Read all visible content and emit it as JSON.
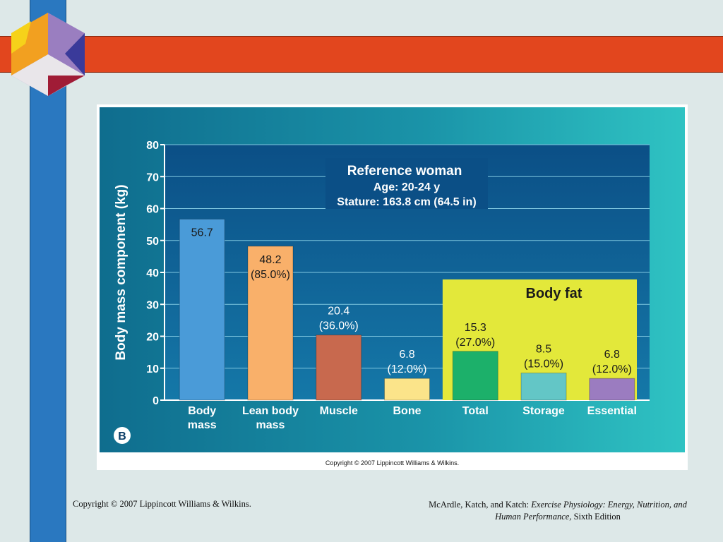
{
  "slide": {
    "inner_credit": "Copyright © 2007 Lippincott Williams & Wilkins.",
    "footer_left": "Copyright © 2007 Lippincott Williams & Wilkins.",
    "footer_right_authors": "McArdle, Katch, and Katch: ",
    "footer_right_title": "Exercise Physiology: Energy, Nutrition, and Human Performance,",
    "footer_right_edition": " Sixth Edition",
    "colors": {
      "vertical_bar": "#2a78c0",
      "horizontal_bar": "#e2461e",
      "background": "#dde8e8"
    }
  },
  "chart_data": {
    "type": "bar",
    "panel_letter": "B",
    "title": "Reference woman",
    "subtitle_lines": [
      "Age: 20-24 y",
      "Stature: 163.8 cm (64.5 in)"
    ],
    "ylabel": "Body mass component (kg)",
    "xlabel": "",
    "ylim": [
      0,
      80
    ],
    "yticks": [
      0,
      10,
      20,
      30,
      40,
      50,
      60,
      70,
      80
    ],
    "grid": true,
    "group_label": "Body fat",
    "bars": [
      {
        "category": [
          "Body",
          "mass"
        ],
        "value": 56.7,
        "labels": [
          "56.7"
        ],
        "color": "#4a9bd8",
        "in_group": false
      },
      {
        "category": [
          "Lean body",
          "mass"
        ],
        "value": 48.2,
        "labels": [
          "48.2",
          "(85.0%)"
        ],
        "color": "#f9b06a",
        "in_group": false
      },
      {
        "category": [
          "Muscle"
        ],
        "value": 20.4,
        "labels": [
          "20.4",
          "(36.0%)"
        ],
        "color": "#c8694e",
        "in_group": false
      },
      {
        "category": [
          "Bone"
        ],
        "value": 6.8,
        "labels": [
          "6.8",
          "(12.0%)"
        ],
        "color": "#fbe48a",
        "in_group": false
      },
      {
        "category": [
          "Total"
        ],
        "value": 15.3,
        "labels": [
          "15.3",
          "(27.0%)"
        ],
        "color": "#1cb06a",
        "in_group": true
      },
      {
        "category": [
          "Storage"
        ],
        "value": 8.5,
        "labels": [
          "8.5",
          "(15.0%)"
        ],
        "color": "#63c6c6",
        "in_group": true
      },
      {
        "category": [
          "Essential"
        ],
        "value": 6.8,
        "labels": [
          "6.8",
          "(12.0%)"
        ],
        "color": "#9b7cc0",
        "in_group": true
      }
    ]
  }
}
